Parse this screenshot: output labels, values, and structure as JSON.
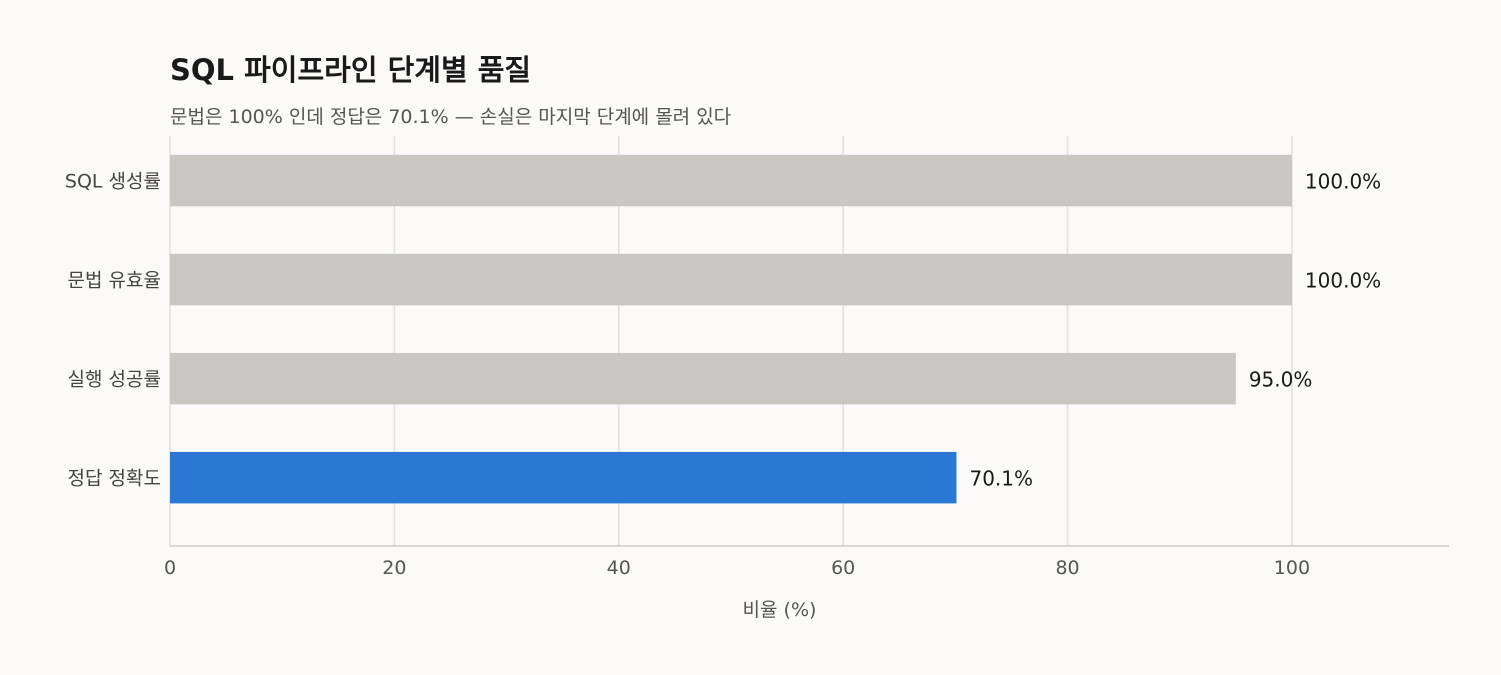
{
  "chart_data": {
    "type": "bar",
    "orientation": "horizontal",
    "title": "SQL 파이프라인 단계별 품질",
    "subtitle": "문법은 100% 인데 정답은 70.1% — 손실은 마지막 단계에 몰려 있다",
    "categories": [
      "SQL 생성률",
      "문법 유효율",
      "실행 성공률",
      "정답 정확도"
    ],
    "values": [
      100.0,
      100.0,
      95.0,
      70.1
    ],
    "value_labels": [
      "100.0%",
      "100.0%",
      "95.0%",
      "70.1%"
    ],
    "highlight_index": 3,
    "xlabel": "비율 (%)",
    "xlim": [
      0,
      114
    ],
    "xticks": [
      0,
      20,
      40,
      60,
      80,
      100
    ],
    "xtick_labels": [
      "0",
      "20",
      "40",
      "60",
      "80",
      "100"
    ],
    "grid": "vertical",
    "colors": {
      "bar": "#c9c7c1",
      "highlight": "#2b78d4",
      "background": "#fbfaf8"
    }
  }
}
